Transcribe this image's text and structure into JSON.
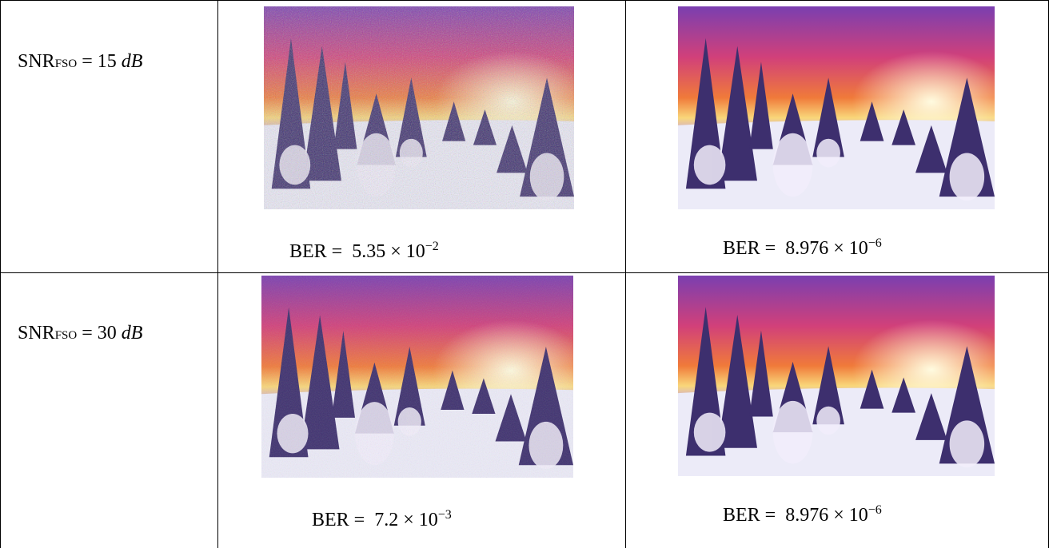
{
  "table": {
    "rows": [
      {
        "snr": {
          "base": "SNR",
          "sub": "FSO",
          "eq": "= 15",
          "unit": "dB"
        },
        "cells": [
          {
            "ber": {
              "prefix": "BER =",
              "mantissa": "5.35 × 10",
              "exponent": "−2"
            }
          },
          {
            "ber": {
              "prefix": "BER =",
              "mantissa": "8.976 × 10",
              "exponent": "−6"
            }
          }
        ]
      },
      {
        "snr": {
          "base": "SNR",
          "sub": "FSO",
          "eq": "= 30",
          "unit": "dB"
        },
        "cells": [
          {
            "ber": {
              "prefix": "BER =",
              "mantissa": "7.2 × 10",
              "exponent": "−3"
            }
          },
          {
            "ber": {
              "prefix": "BER =",
              "mantissa": "8.976 × 10",
              "exponent": "−6"
            }
          }
        ]
      }
    ]
  }
}
